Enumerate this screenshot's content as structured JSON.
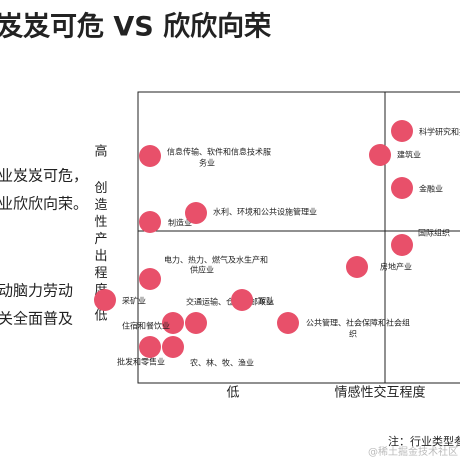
{
  "title": "岌岌可危 VS 欣欣向荣",
  "side_text": [
    "业岌岌可危，",
    "业欣欣向荣。",
    "动脑力劳动",
    "关全面普及"
  ],
  "y_axis": {
    "high": "高",
    "label": "创造性产出程度",
    "low": "低"
  },
  "x_axis": {
    "low": "低",
    "label": "情感性交互程度"
  },
  "nodes": [
    {
      "label": [
        "信息传输、软件和信息技术服",
        "务业"
      ]
    },
    {
      "label": [
        "制造业"
      ]
    },
    {
      "label": [
        "水利、环境和公共设施管理业"
      ]
    },
    {
      "label": [
        "电力、热力、燃气及水生产和",
        "供应业"
      ]
    },
    {
      "label": [
        "采矿业"
      ]
    },
    {
      "label": [
        "交通运输、仓储和邮政业"
      ]
    },
    {
      "label": [
        "军队"
      ]
    },
    {
      "label": [
        "住宿和餐饮业"
      ]
    },
    {
      "label": [
        "批发和零售业"
      ]
    },
    {
      "label": [
        "农、林、牧、渔业"
      ]
    },
    {
      "label": [
        "公共管理、社会保障和社会组",
        "织"
      ]
    },
    {
      "label": [
        "科学研究和技"
      ]
    },
    {
      "label": [
        "建筑业"
      ]
    },
    {
      "label": [
        "金融业"
      ]
    },
    {
      "label": [
        "国际组织"
      ]
    },
    {
      "label": [
        "房地产业"
      ]
    }
  ],
  "note": "注：行业类型参",
  "watermark": "@稀土掘金技术社区"
}
